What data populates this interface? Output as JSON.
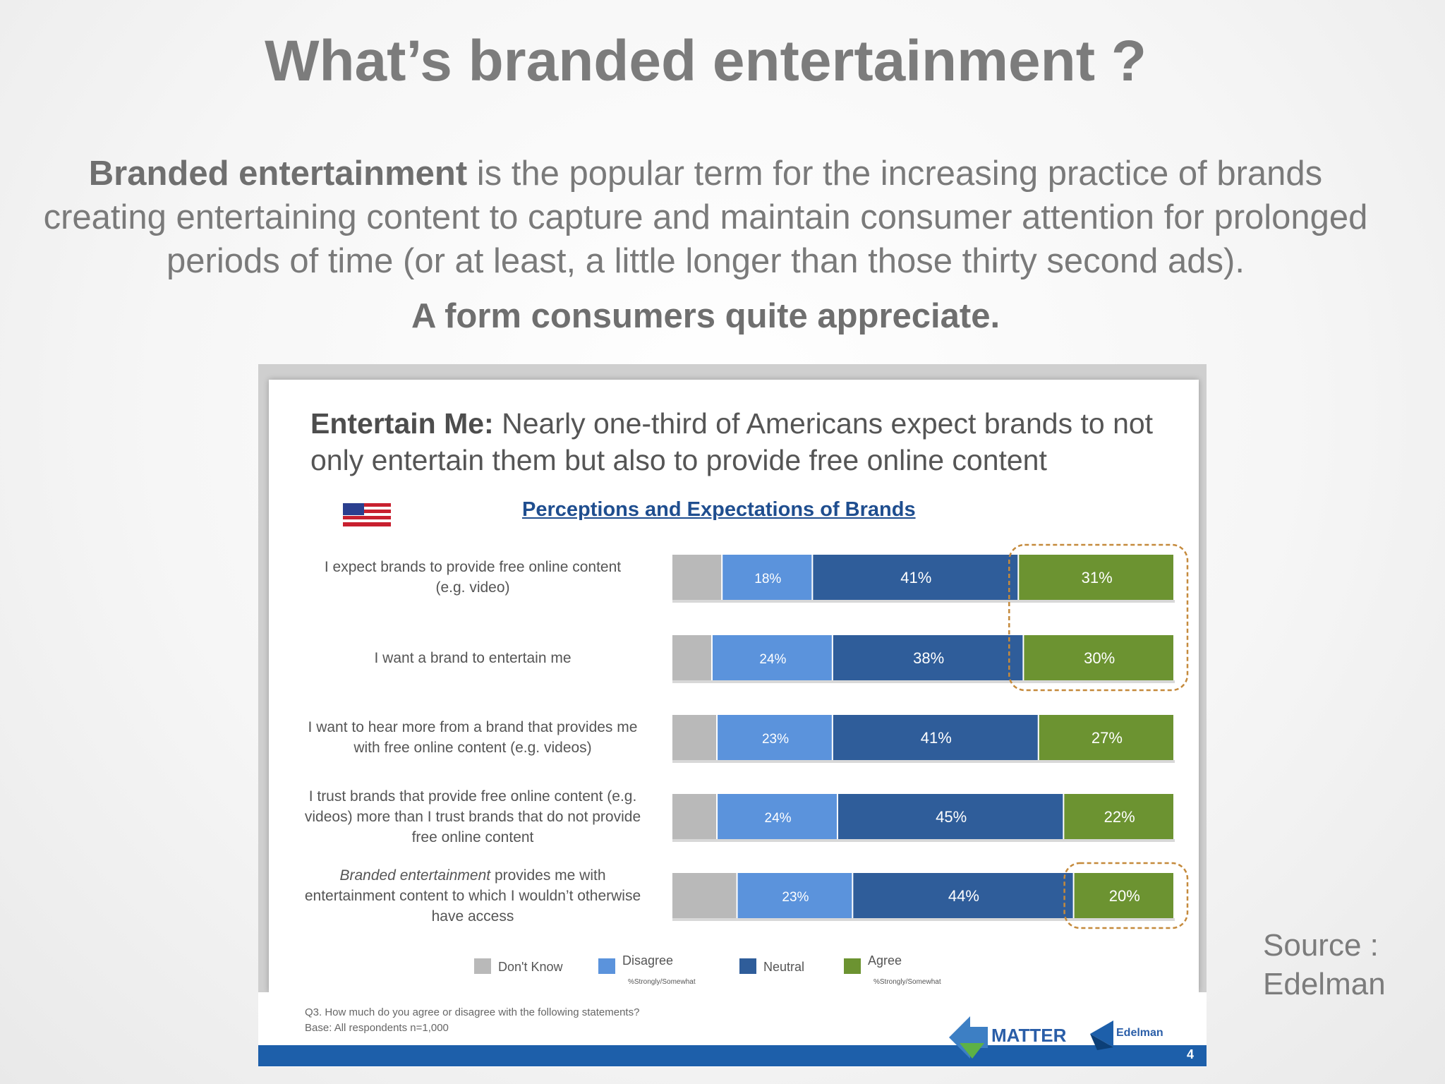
{
  "page": {
    "title": "What’s branded entertainment ?",
    "intro_bold": "Branded entertainment",
    "intro_rest": " is the popular term for the increasing practice of brands creating entertaining content to capture and maintain consumer attention for prolonged periods of time (or at least, a little longer than those thirty second ads).",
    "tagline": "A form consumers quite appreciate.",
    "source_line1": "Source :",
    "source_line2": "Edelman"
  },
  "slide": {
    "title_bold": "Entertain Me:",
    "title_rest": " Nearly one-third of Americans expect brands to not only entertain them but also to provide free online content",
    "subtitle": "Perceptions and Expectations of Brands",
    "question": "Q3. How much do you agree or disagree with the following statements?",
    "base": "Base: All respondents n=1,000",
    "logo_matter": "MATTER",
    "logo_edelman": "Edelman",
    "page_number": "4"
  },
  "colors": {
    "dont_know": "#b9b9b9",
    "disagree": "#5b93dc",
    "neutral": "#2f5d9a",
    "agree": "#6c9331",
    "highlight": "#c58a3c"
  },
  "chart_data": {
    "type": "bar",
    "orientation": "horizontal",
    "stacked": true,
    "title": "Perceptions and Expectations of Brands",
    "categories": [
      "I expect brands to provide free online content (e.g. video)",
      "I want a brand to entertain me",
      "I want to hear more from a brand that provides me with free online content (e.g. videos)",
      "I trust brands that provide free online content (e.g. videos) more than I trust brands that do not provide free online content",
      "Branded entertainment provides me with entertainment content to which I wouldn’t otherwise have access"
    ],
    "category_lines": [
      [
        "I expect brands to provide free online content",
        "(e.g. video)"
      ],
      [
        "I want a brand to entertain me"
      ],
      [
        "I want to hear more from a brand that provides me",
        "with free online content (e.g. videos)"
      ],
      [
        "I trust brands that provide free online content (e.g.",
        "videos) more than I trust brands that do not provide",
        "free online content"
      ],
      [
        "Branded entertainment provides me with",
        "entertainment content to which I wouldn’t otherwise",
        "have access"
      ]
    ],
    "series": [
      {
        "name": "Don't Know",
        "values": [
          10,
          8,
          9,
          9,
          13
        ]
      },
      {
        "name": "Disagree",
        "note": "%Strongly/Somewhat",
        "values": [
          18,
          24,
          23,
          24,
          23
        ]
      },
      {
        "name": "Neutral",
        "values": [
          41,
          38,
          41,
          45,
          44
        ]
      },
      {
        "name": "Agree",
        "note": "%Strongly/Somewhat",
        "values": [
          31,
          30,
          27,
          22,
          20
        ]
      }
    ],
    "labels": [
      [
        "",
        "18%",
        "41%",
        "31%"
      ],
      [
        "",
        "24%",
        "38%",
        "30%"
      ],
      [
        "",
        "23%",
        "41%",
        "27%"
      ],
      [
        "",
        "24%",
        "45%",
        "22%"
      ],
      [
        "",
        "23%",
        "44%",
        "20%"
      ]
    ],
    "highlight_rows": [
      [
        0,
        1
      ],
      [
        4,
        4
      ]
    ],
    "legend_position": "bottom"
  }
}
